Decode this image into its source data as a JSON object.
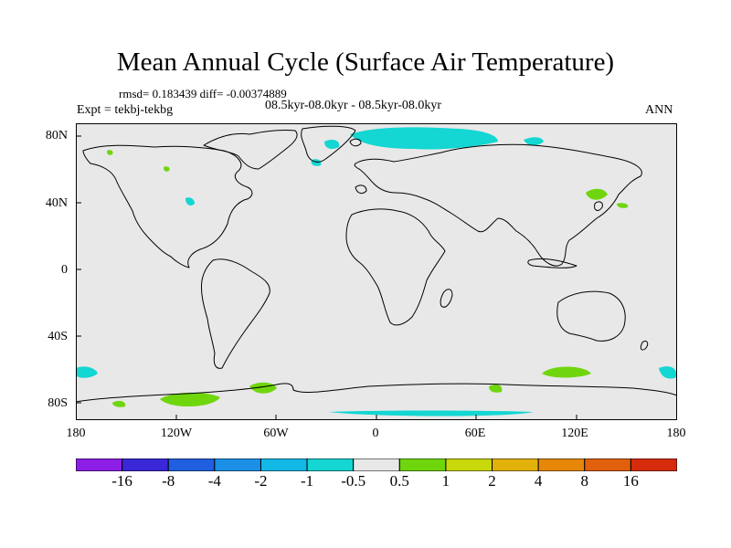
{
  "title": "Mean Annual Cycle (Surface Air Temperature)",
  "stats": "rmsd= 0.183439 diff= -0.00374889",
  "subtitle": "08.5kyr-08.0kyr - 08.5kyr-08.0kyr",
  "experiment": "Expt = tekbj-tekbg",
  "season": "ANN",
  "y_axis_labels": [
    "80N",
    "40N",
    "0",
    "40S",
    "80S"
  ],
  "x_axis_labels": [
    "180",
    "120W",
    "60W",
    "0",
    "60E",
    "120E",
    "180"
  ],
  "colorbar": {
    "labels": [
      "-16",
      "-8",
      "-4",
      "-2",
      "-1",
      "-0.5",
      "0.5",
      "1",
      "2",
      "4",
      "8",
      "16"
    ],
    "colors": [
      "#8c1ee6",
      "#3a28d8",
      "#1f5fe0",
      "#1c8fe6",
      "#14b8e6",
      "#14d6d2",
      "#e8e8e8",
      "#6fd60e",
      "#c8d80a",
      "#e2b20a",
      "#e6870a",
      "#e0600c",
      "#d62c0c"
    ]
  },
  "map_colors": {
    "ocean_land_fill": "#e8e8e8",
    "cool_anomaly": "#14d6d2",
    "warm_anomaly": "#6fd60e"
  }
}
